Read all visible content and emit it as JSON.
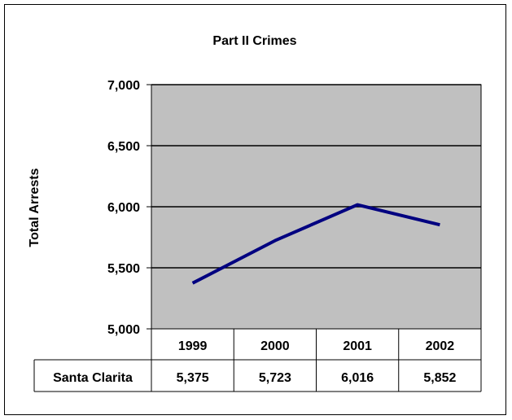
{
  "chart_data": {
    "type": "line",
    "title": "Part II Crimes",
    "xlabel": "",
    "ylabel": "Total Arrests",
    "categories": [
      "1999",
      "2000",
      "2001",
      "2002"
    ],
    "series": [
      {
        "name": "Santa Clarita",
        "values": [
          5375,
          5723,
          6016,
          5852
        ],
        "labels": [
          "5,375",
          "5,723",
          "6,016",
          "5,852"
        ]
      }
    ],
    "ylim": [
      5000,
      7000
    ],
    "yticks": [
      5000,
      5500,
      6000,
      6500,
      7000
    ],
    "ytick_labels": [
      "5,000",
      "5,500",
      "6,000",
      "6,500",
      "7,000"
    ],
    "grid": true,
    "data_table": true,
    "colors": {
      "plot_bg": "#c0c0c0",
      "line": "#000080",
      "frame": "#000000"
    }
  }
}
